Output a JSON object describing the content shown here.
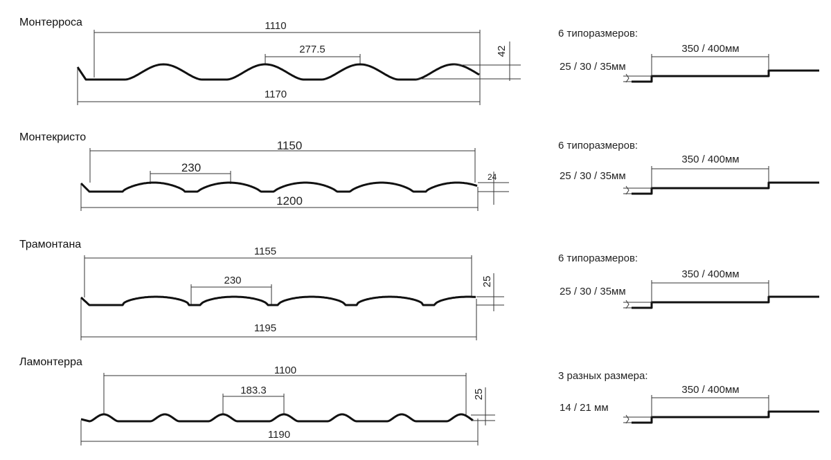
{
  "profiles": [
    {
      "name": "Монтерроса",
      "overall_width": "1110",
      "pitch": "277.5",
      "total_width": "1170",
      "height": "42",
      "step_caption": "6 типоразмеров:",
      "step_length": "350 / 400мм",
      "step_height": "25 / 30 / 35мм"
    },
    {
      "name": "Монтекристо",
      "overall_width": "1150",
      "pitch": "230",
      "total_width": "1200",
      "height": "24",
      "step_caption": "6 типоразмеров:",
      "step_length": "350 / 400мм",
      "step_height": "25 / 30 / 35мм"
    },
    {
      "name": "Трамонтана",
      "overall_width": "1155",
      "pitch": "230",
      "total_width": "1195",
      "height": "25",
      "step_caption": "6 типоразмеров:",
      "step_length": "350 / 400мм",
      "step_height": "25 / 30 / 35мм"
    },
    {
      "name": "Ламонтерра",
      "overall_width": "1100",
      "pitch": "183.3",
      "total_width": "1190",
      "height": "25",
      "step_caption": "3 разных размера:",
      "step_length": "350 / 400мм",
      "step_height": "14 / 21 мм"
    }
  ]
}
